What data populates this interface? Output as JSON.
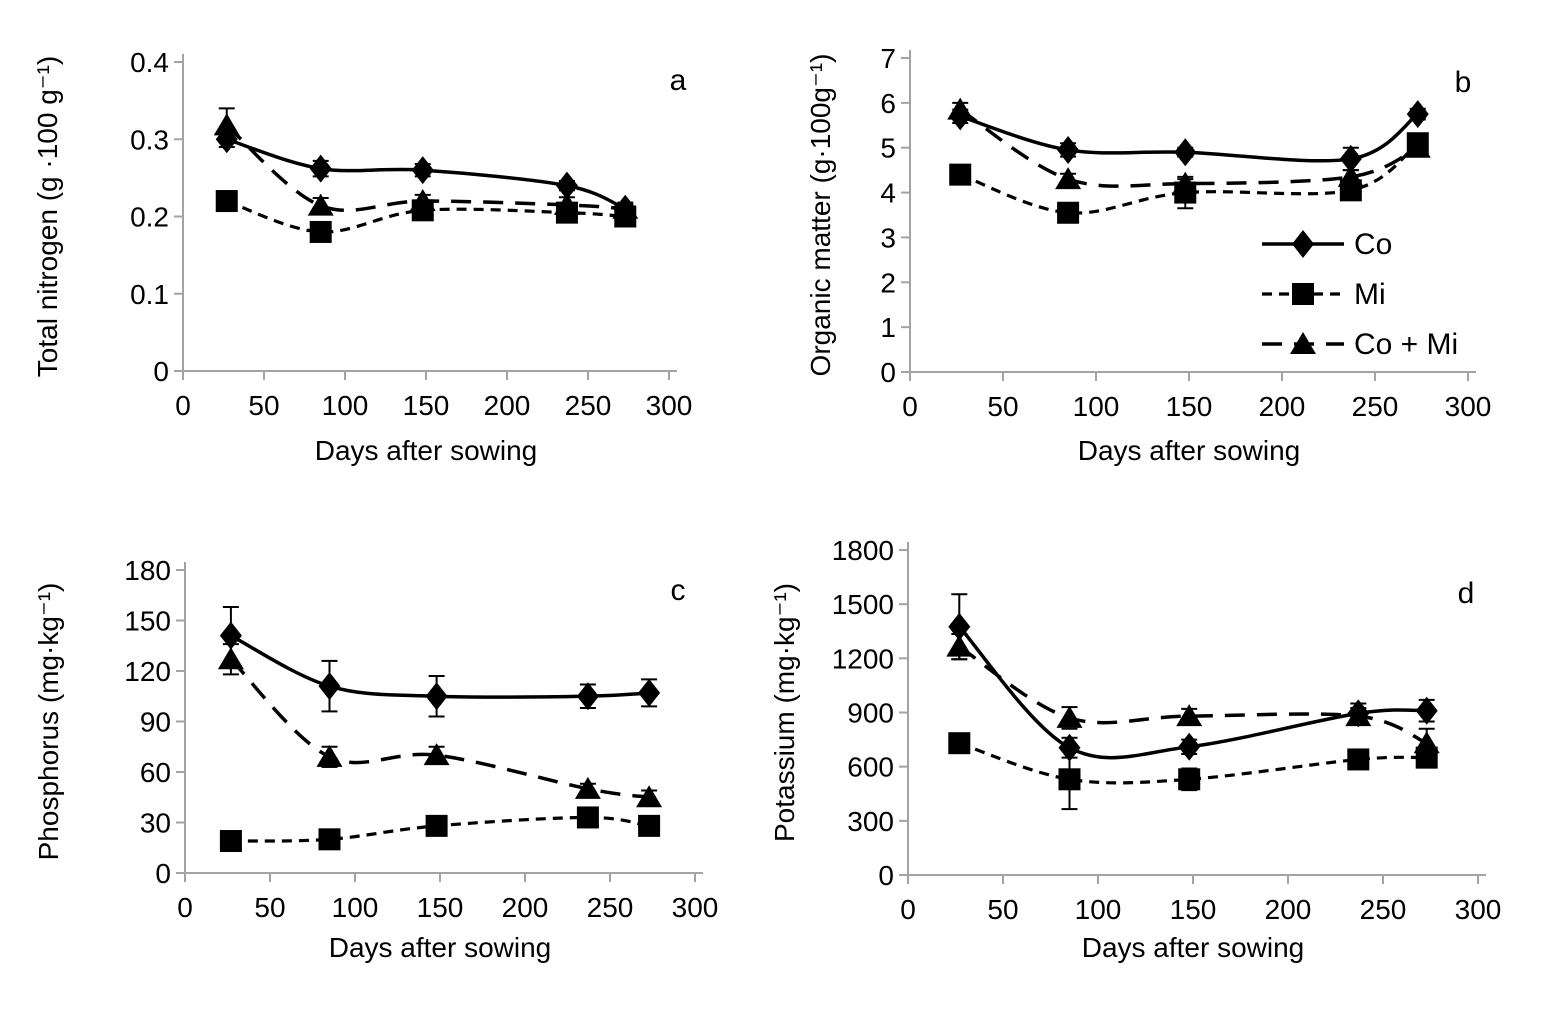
{
  "figure": {
    "background": "#ffffff",
    "axis_color": "#a3a3a3",
    "series_color": "#000000",
    "text_color": "#000000",
    "x_axis": {
      "label": "Days after sowing",
      "min": 0,
      "max": 300,
      "ticks": [
        0,
        50,
        100,
        150,
        200,
        250,
        300
      ]
    },
    "legend": {
      "entries": [
        {
          "label": "Co",
          "marker": "diamond",
          "line": "solid"
        },
        {
          "label": "Mi",
          "marker": "square",
          "line": "dashed-short"
        },
        {
          "label": "Co + Mi",
          "marker": "triangle",
          "line": "dashed-long"
        }
      ],
      "location": "right side of panel b"
    }
  },
  "chart_data": [
    {
      "panel": "a",
      "type": "line",
      "xlabel": "Days after sowing",
      "ylabel": "Total nitrogen (g ·100 g⁻¹)",
      "xlim": [
        0,
        300
      ],
      "ylim": [
        0,
        0.4
      ],
      "xticks": [
        0,
        50,
        100,
        150,
        200,
        250,
        300
      ],
      "yticks": [
        0,
        0.1,
        0.2,
        0.3,
        0.4
      ],
      "ytick_labels": [
        "0",
        "0.1",
        "0.2",
        "0.3",
        "0.4"
      ],
      "x": [
        27,
        85,
        148,
        237,
        273
      ],
      "series": [
        {
          "name": "Co",
          "values": [
            0.3,
            0.262,
            0.26,
            0.24,
            0.21
          ],
          "errors": [
            0.01,
            0.01,
            0.008,
            0.006,
            0.006
          ]
        },
        {
          "name": "Mi",
          "values": [
            0.22,
            0.18,
            0.208,
            0.205,
            0.2
          ],
          "errors": [
            0.004,
            0.004,
            0.006,
            0.005,
            0.004
          ]
        },
        {
          "name": "Co + Mi",
          "values": [
            0.318,
            0.214,
            0.22,
            0.215,
            0.21
          ],
          "errors": [
            0.022,
            0.01,
            0.008,
            0.01,
            0.008
          ]
        }
      ]
    },
    {
      "panel": "b",
      "type": "line",
      "xlabel": "Days after sowing",
      "ylabel": "Organic matter (g·100g⁻¹)",
      "xlim": [
        0,
        300
      ],
      "ylim": [
        0,
        7
      ],
      "xticks": [
        0,
        50,
        100,
        150,
        200,
        250,
        300
      ],
      "yticks": [
        0,
        1,
        2,
        3,
        4,
        5,
        6,
        7
      ],
      "ytick_labels": [
        "0",
        "1",
        "2",
        "3",
        "4",
        "5",
        "6",
        "7"
      ],
      "x": [
        27,
        85,
        148,
        237,
        273
      ],
      "show_legend": true,
      "series": [
        {
          "name": "Co",
          "values": [
            5.7,
            4.95,
            4.9,
            4.75,
            5.75
          ],
          "errors": [
            0.15,
            0.15,
            0.1,
            0.25,
            0.12
          ]
        },
        {
          "name": "Mi",
          "values": [
            4.4,
            3.55,
            4.0,
            4.05,
            5.1
          ],
          "errors": [
            0.18,
            0.15,
            0.35,
            0.15,
            0.12
          ]
        },
        {
          "name": "Co + Mi",
          "values": [
            5.85,
            4.3,
            4.2,
            4.35,
            5.0
          ],
          "errors": [
            0.15,
            0.12,
            0.1,
            0.15,
            0.1
          ]
        }
      ]
    },
    {
      "panel": "c",
      "type": "line",
      "xlabel": "Days after sowing",
      "ylabel": "Phosphorus (mg·kg⁻¹)",
      "xlim": [
        0,
        300
      ],
      "ylim": [
        0,
        180
      ],
      "xticks": [
        0,
        50,
        100,
        150,
        200,
        250,
        300
      ],
      "yticks": [
        0,
        30,
        60,
        90,
        120,
        150,
        180
      ],
      "ytick_labels": [
        "0",
        "30",
        "60",
        "90",
        "120",
        "150",
        "180"
      ],
      "x": [
        27,
        85,
        148,
        237,
        273
      ],
      "series": [
        {
          "name": "Co",
          "values": [
            141,
            111,
            105,
            105,
            107
          ],
          "errors": [
            17,
            15,
            12,
            7,
            8
          ]
        },
        {
          "name": "Mi",
          "values": [
            19,
            20,
            28,
            33,
            28
          ],
          "errors": [
            2,
            2,
            3,
            3,
            3
          ]
        },
        {
          "name": "Co + Mi",
          "values": [
            127,
            69,
            70,
            50,
            45
          ],
          "errors": [
            9,
            6,
            5,
            3,
            4
          ]
        }
      ]
    },
    {
      "panel": "d",
      "type": "line",
      "xlabel": "Days after sowing",
      "ylabel": "Potassium (mg·kg⁻¹)",
      "xlim": [
        0,
        300
      ],
      "ylim": [
        0,
        1800
      ],
      "xticks": [
        0,
        50,
        100,
        150,
        200,
        250,
        300
      ],
      "yticks": [
        0,
        300,
        600,
        900,
        1200,
        1500,
        1800
      ],
      "ytick_labels": [
        "0",
        "300",
        "600",
        "900",
        "1200",
        "1500",
        "1800"
      ],
      "x": [
        27,
        85,
        148,
        237,
        273
      ],
      "series": [
        {
          "name": "Co",
          "values": [
            1375,
            705,
            710,
            895,
            910
          ],
          "errors": [
            180,
            55,
            40,
            55,
            60
          ]
        },
        {
          "name": "Mi",
          "values": [
            730,
            530,
            530,
            640,
            650
          ],
          "errors": [
            30,
            165,
            60,
            40,
            40
          ]
        },
        {
          "name": "Co + Mi",
          "values": [
            1265,
            870,
            880,
            880,
            730
          ],
          "errors": [
            70,
            60,
            40,
            45,
            80
          ]
        }
      ]
    }
  ]
}
